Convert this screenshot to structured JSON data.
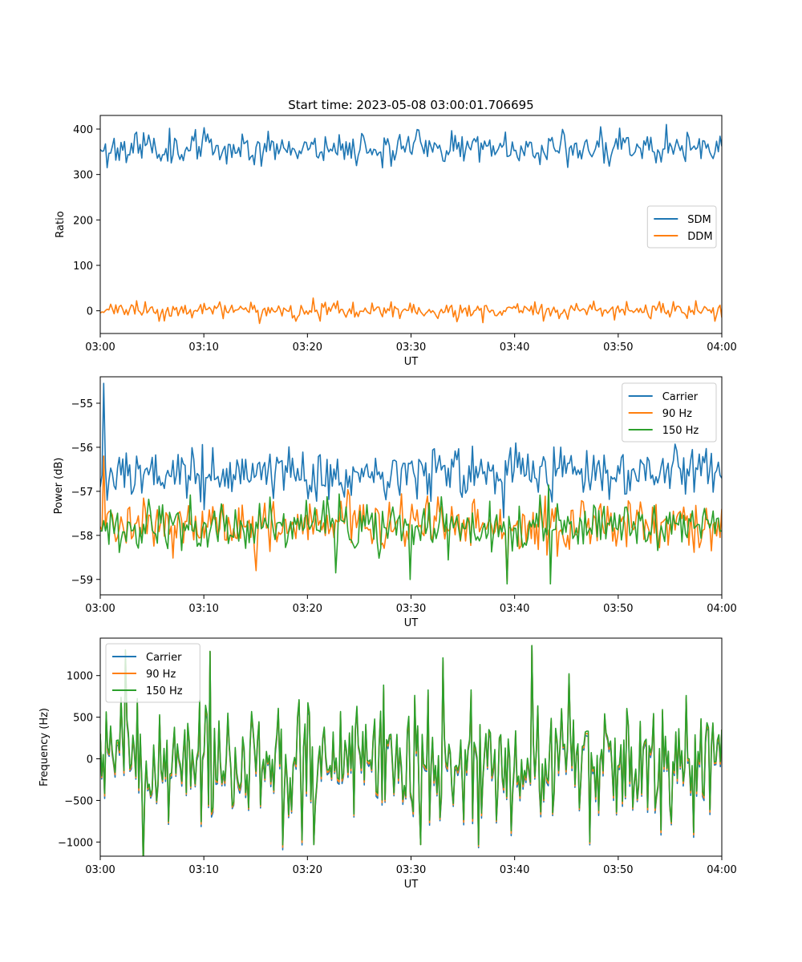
{
  "chart_data": [
    {
      "type": "line",
      "title": "Start time: 2023-05-08 03:00:01.706695",
      "xlabel": "UT",
      "ylabel": "Ratio",
      "x_range": [
        "03:00",
        "04:00"
      ],
      "xlim_minutes": [
        0,
        60
      ],
      "x_ticks": [
        "03:00",
        "03:10",
        "03:20",
        "03:30",
        "03:40",
        "03:50",
        "04:00"
      ],
      "ylim": [
        -50,
        430
      ],
      "y_ticks": [
        0,
        100,
        200,
        300,
        400
      ],
      "legend_position": "center-right",
      "grid": false,
      "points": 360,
      "series": [
        {
          "name": "SDM",
          "color": "#1f77b4",
          "mean": 360,
          "amp": 18,
          "seed": 11,
          "anchors": [
            [
              0,
              355
            ],
            [
              0.7,
              315
            ],
            [
              54.6,
              410
            ],
            [
              60,
              362
            ]
          ]
        },
        {
          "name": "DDM",
          "color": "#ff7f0e",
          "mean": 0,
          "amp": 9,
          "seed": 23,
          "anchors": [
            [
              0,
              -5
            ],
            [
              15.3,
              -28
            ],
            [
              20.6,
              28
            ],
            [
              60,
              -15
            ]
          ]
        }
      ]
    },
    {
      "type": "line",
      "title": "",
      "xlabel": "UT",
      "ylabel": "Power (dB)",
      "x_range": [
        "03:00",
        "04:00"
      ],
      "xlim_minutes": [
        0,
        60
      ],
      "x_ticks": [
        "03:00",
        "03:10",
        "03:20",
        "03:30",
        "03:40",
        "03:50",
        "04:00"
      ],
      "ylim": [
        -59.35,
        -54.4
      ],
      "y_ticks": [
        -59,
        -58,
        -57,
        -56,
        -55
      ],
      "legend_position": "upper-right",
      "grid": false,
      "points": 360,
      "series": [
        {
          "name": "Carrier",
          "color": "#1f77b4",
          "mean": -56.6,
          "amp": 0.28,
          "seed": 5,
          "anchors": [
            [
              0,
              -56.9
            ],
            [
              0.3,
              -54.55
            ],
            [
              0.6,
              -57.2
            ],
            [
              39,
              -57.6
            ],
            [
              60,
              -56.7
            ]
          ]
        },
        {
          "name": "90 Hz",
          "color": "#ff7f0e",
          "mean": -57.75,
          "amp": 0.3,
          "seed": 41,
          "anchors": [
            [
              0,
              -57.8
            ],
            [
              0.35,
              -56.2
            ],
            [
              15,
              -58.8
            ],
            [
              39.2,
              -59.05
            ],
            [
              60,
              -57.4
            ]
          ]
        },
        {
          "name": "150 Hz",
          "color": "#2ca02c",
          "mean": -57.8,
          "amp": 0.3,
          "seed": 77,
          "anchors": [
            [
              0,
              -57.9
            ],
            [
              30,
              -59.0
            ],
            [
              39.3,
              -59.1
            ],
            [
              43.5,
              -59.1
            ],
            [
              60,
              -57.9
            ]
          ]
        }
      ]
    },
    {
      "type": "line",
      "title": "",
      "xlabel": "UT",
      "ylabel": "Frequency (Hz)",
      "x_range": [
        "03:00",
        "04:00"
      ],
      "xlim_minutes": [
        0,
        60
      ],
      "x_ticks": [
        "03:00",
        "03:10",
        "03:20",
        "03:30",
        "03:40",
        "03:50",
        "04:00"
      ],
      "ylim": [
        -1170,
        1450
      ],
      "y_ticks": [
        -1000,
        -500,
        0,
        500,
        1000
      ],
      "legend_position": "upper-left",
      "grid": false,
      "points": 420,
      "series": [
        {
          "name": "Carrier",
          "color": "#1f77b4",
          "mean": -40,
          "amp": 380,
          "seed": 101,
          "offset": -60,
          "anchors": [
            [
              0,
              300
            ],
            [
              10.6,
              1290
            ],
            [
              20.6,
              -1030
            ],
            [
              31.0,
              -1030
            ],
            [
              41.7,
              1360
            ],
            [
              60,
              350
            ]
          ]
        },
        {
          "name": "90 Hz",
          "color": "#ff7f0e",
          "mean": -40,
          "amp": 380,
          "seed": 101,
          "offset": -30,
          "anchors": [
            [
              0,
              300
            ],
            [
              10.6,
              1290
            ],
            [
              20.6,
              -1030
            ],
            [
              31.0,
              -1030
            ],
            [
              41.7,
              1360
            ],
            [
              60,
              350
            ]
          ]
        },
        {
          "name": "150 Hz",
          "color": "#2ca02c",
          "mean": -40,
          "amp": 380,
          "seed": 101,
          "offset": 0,
          "anchors": [
            [
              0,
              300
            ],
            [
              10.6,
              1290
            ],
            [
              20.6,
              -1030
            ],
            [
              31.0,
              -1030
            ],
            [
              41.7,
              1360
            ],
            [
              60,
              350
            ]
          ]
        }
      ]
    }
  ]
}
